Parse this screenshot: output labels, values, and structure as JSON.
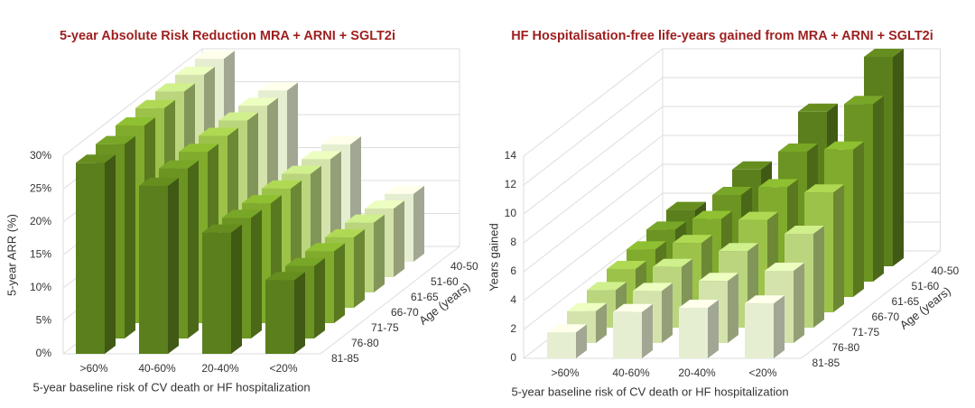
{
  "chart_data": [
    {
      "type": "bar3d",
      "title": "5-year Absolute Risk Reduction MRA + ARNI + SGLT2i",
      "xlabel": "5-year baseline risk of CV death or HF hospitalization",
      "ylabel": "5-year ARR (%)",
      "zlabel": "Age (years)",
      "categories": [
        ">60%",
        "40-60%",
        "20-40%",
        "<20%"
      ],
      "series": [
        {
          "name": "81-85",
          "color": "#5b7f1c",
          "values": [
            29,
            25.5,
            18.4,
            11.2
          ]
        },
        {
          "name": "76-80",
          "color": "#6b9422",
          "values": [
            29.5,
            25.8,
            18.3,
            11
          ]
        },
        {
          "name": "71-75",
          "color": "#80ab2c",
          "values": [
            30,
            26,
            18.2,
            10.9
          ]
        },
        {
          "name": "66-70",
          "color": "#9cc24a",
          "values": [
            30.3,
            26.1,
            18.1,
            10.7
          ]
        },
        {
          "name": "61-65",
          "color": "#bad57e",
          "values": [
            30.5,
            26.1,
            18,
            10.6
          ]
        },
        {
          "name": "51-60",
          "color": "#d3e3ab",
          "values": [
            30.7,
            26,
            17.9,
            10.4
          ]
        },
        {
          "name": "40-50",
          "color": "#e6eed2",
          "values": [
            30.8,
            26,
            17.8,
            10.3
          ]
        }
      ],
      "ylim": [
        0,
        30
      ],
      "yticks": [
        {
          "value": 0,
          "label": "0%"
        },
        {
          "value": 5,
          "label": "5%"
        },
        {
          "value": 10,
          "label": "10%"
        },
        {
          "value": 15,
          "label": "15%"
        },
        {
          "value": 20,
          "label": "20%"
        },
        {
          "value": 25,
          "label": "25%"
        },
        {
          "value": 30,
          "label": "30%"
        }
      ],
      "grid": true
    },
    {
      "type": "bar3d",
      "title": "HF Hospitalisation-free life-years gained from MRA + ARNI + SGLT2i",
      "xlabel": "5-year baseline risk of CV death or HF hospitalization",
      "ylabel": "Years gained",
      "zlabel": "Age (years)",
      "categories": [
        ">60%",
        "40-60%",
        "20-40%",
        "<20%"
      ],
      "series": [
        {
          "name": "81-85",
          "color": "#e6eed2",
          "values": [
            1.8,
            3.2,
            3.5,
            3.8
          ]
        },
        {
          "name": "76-80",
          "color": "#d3e3ab",
          "values": [
            2.2,
            3.6,
            4.3,
            5
          ]
        },
        {
          "name": "71-75",
          "color": "#bad57e",
          "values": [
            2.6,
            4.2,
            5.3,
            6.5
          ]
        },
        {
          "name": "66-70",
          "color": "#9cc24a",
          "values": [
            3,
            4.8,
            6.4,
            8.3
          ]
        },
        {
          "name": "61-65",
          "color": "#80ab2c",
          "values": [
            3.3,
            5.4,
            7.6,
            10.2
          ]
        },
        {
          "name": "51-60",
          "color": "#6b9422",
          "values": [
            3.6,
            6,
            9,
            12.3
          ]
        },
        {
          "name": "40-50",
          "color": "#5b7f1c",
          "values": [
            3.9,
            6.7,
            10.7,
            14.5
          ]
        }
      ],
      "ylim": [
        0,
        14
      ],
      "yticks": [
        0,
        2,
        4,
        6,
        8,
        10,
        12,
        14
      ],
      "grid": true
    }
  ]
}
